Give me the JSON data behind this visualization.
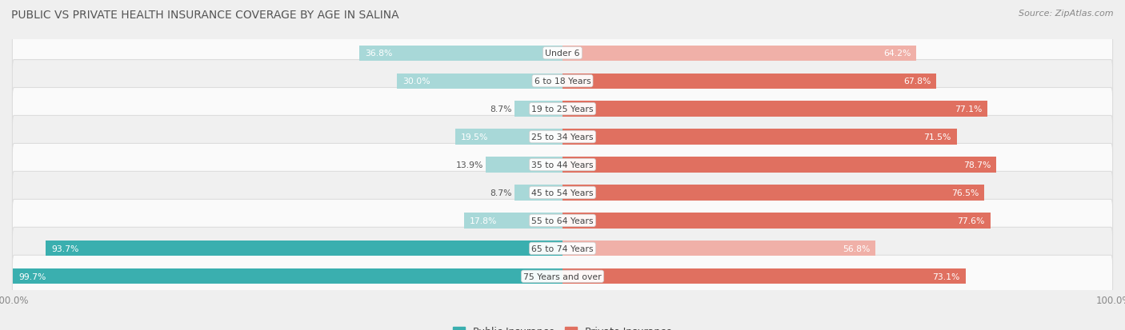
{
  "title": "PUBLIC VS PRIVATE HEALTH INSURANCE COVERAGE BY AGE IN SALINA",
  "source": "Source: ZipAtlas.com",
  "categories": [
    "Under 6",
    "6 to 18 Years",
    "19 to 25 Years",
    "25 to 34 Years",
    "35 to 44 Years",
    "45 to 54 Years",
    "55 to 64 Years",
    "65 to 74 Years",
    "75 Years and over"
  ],
  "public_values": [
    36.8,
    30.0,
    8.7,
    19.5,
    13.9,
    8.7,
    17.8,
    93.7,
    99.7
  ],
  "private_values": [
    64.2,
    67.8,
    77.1,
    71.5,
    78.7,
    76.5,
    77.6,
    56.8,
    73.1
  ],
  "public_color_dark": "#3AAFAF",
  "public_color_light": "#A8D8D8",
  "private_color_dark": "#E07060",
  "private_color_light": "#F0B0A8",
  "bg_color": "#EFEFEF",
  "row_color_odd": "#FAFAFA",
  "row_color_even": "#F0F0F0",
  "title_color": "#555555",
  "label_dark": "#FFFFFF",
  "label_dark_outside": "#666666",
  "axis_label_color": "#888888",
  "source_color": "#888888",
  "bar_height": 0.55,
  "max_value": 100.0,
  "legend_labels": [
    "Public Insurance",
    "Private Insurance"
  ],
  "pub_dark_threshold": 50,
  "priv_dark_threshold": 65,
  "pub_inside_threshold": 15,
  "priv_inside_threshold": 15
}
